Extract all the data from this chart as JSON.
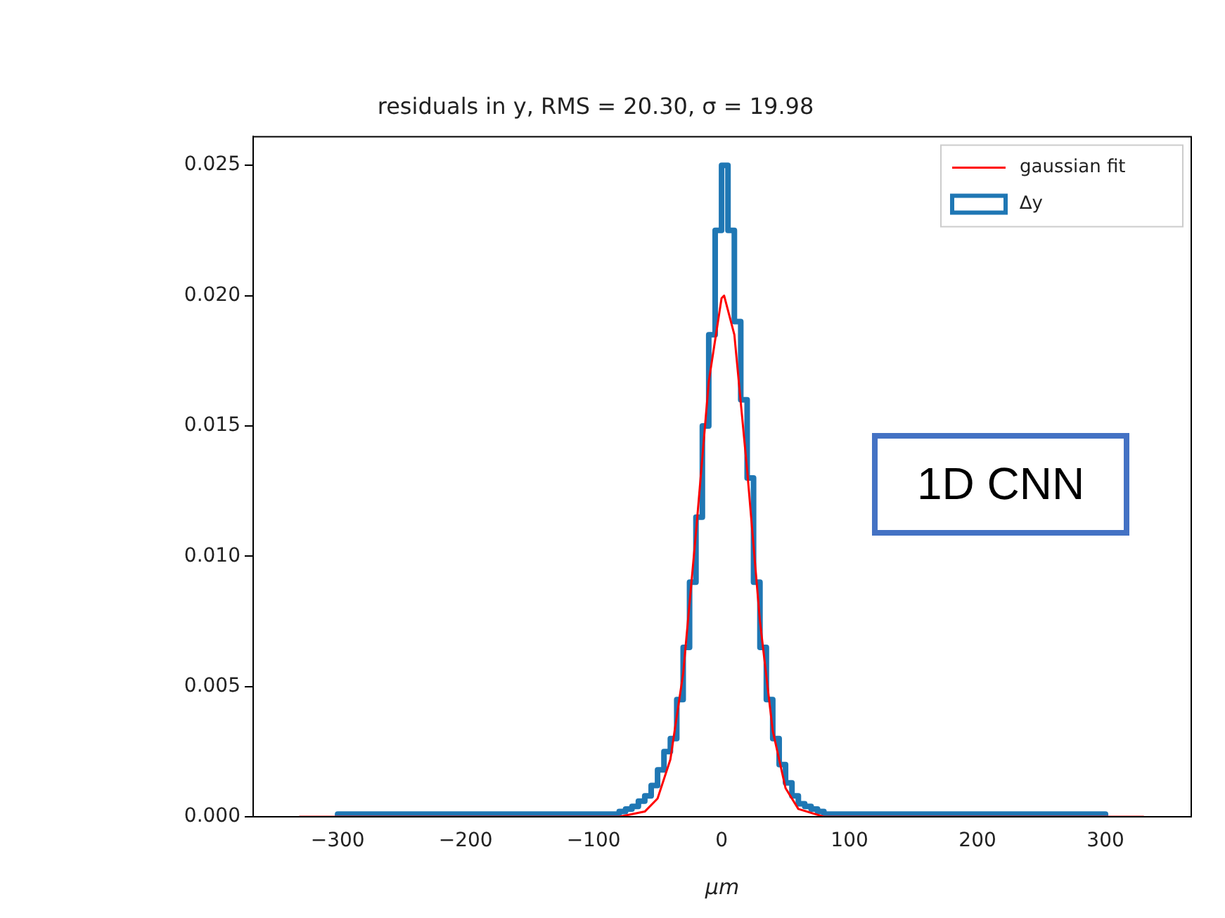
{
  "chart_data": {
    "type": "histogram",
    "title": "residuals in y, RMS = 20.30, σ = 19.98",
    "xlabel": "μm",
    "annotations": [
      "1D CNN"
    ],
    "legend": "top right",
    "grid": false,
    "xlim": [
      -366,
      367
    ],
    "ylim": [
      0,
      0.0261
    ],
    "xticks": [
      {
        "value": -300,
        "label": "−300"
      },
      {
        "value": -200,
        "label": "−200"
      },
      {
        "value": -100,
        "label": "−100"
      },
      0,
      100,
      200,
      300
    ],
    "yticks": [
      {
        "value": 0,
        "label": "0.000"
      },
      {
        "value": 0.005,
        "label": "0.005"
      },
      {
        "value": 0.01,
        "label": "0.010"
      },
      {
        "value": 0.015,
        "label": "0.015"
      },
      {
        "value": 0.02,
        "label": "0.020"
      },
      {
        "value": 0.025,
        "label": "0.025"
      }
    ],
    "series": [
      {
        "name": "gaussian fit",
        "type": "line",
        "color": "#ff0000",
        "x": [
          -330,
          -80,
          -60,
          -50,
          -40,
          -30,
          -20,
          -10,
          0,
          2,
          10,
          20,
          30,
          40,
          50,
          60,
          80,
          330
        ],
        "values": [
          0,
          0,
          0.0002,
          0.0007,
          0.0022,
          0.0055,
          0.0109,
          0.0167,
          0.0199,
          0.02,
          0.0185,
          0.0133,
          0.0075,
          0.0033,
          0.0011,
          0.0003,
          0,
          0
        ]
      },
      {
        "name": "∆y",
        "color": "#1f77b4",
        "bins": [
          -300,
          -200,
          -150,
          -100,
          -80,
          -75,
          -70,
          -65,
          -60,
          -55,
          -50,
          -45,
          -40,
          -35,
          -30,
          -25,
          -20,
          -15,
          -10,
          -5,
          0,
          5,
          10,
          15,
          20,
          25,
          30,
          35,
          40,
          45,
          50,
          55,
          60,
          65,
          70,
          75,
          80,
          100,
          150,
          200,
          300
        ],
        "values": [
          0.0001,
          0.0001,
          0.0001,
          0.0001,
          0.0002,
          0.0003,
          0.0004,
          0.0006,
          0.0008,
          0.0012,
          0.0018,
          0.0025,
          0.003,
          0.0045,
          0.0065,
          0.009,
          0.0115,
          0.015,
          0.0185,
          0.0225,
          0.025,
          0.0225,
          0.019,
          0.016,
          0.013,
          0.009,
          0.0065,
          0.0045,
          0.003,
          0.002,
          0.0013,
          0.0008,
          0.0005,
          0.0004,
          0.0003,
          0.0002,
          0.0001,
          0.0001,
          0.0001,
          0.0001
        ]
      }
    ]
  }
}
